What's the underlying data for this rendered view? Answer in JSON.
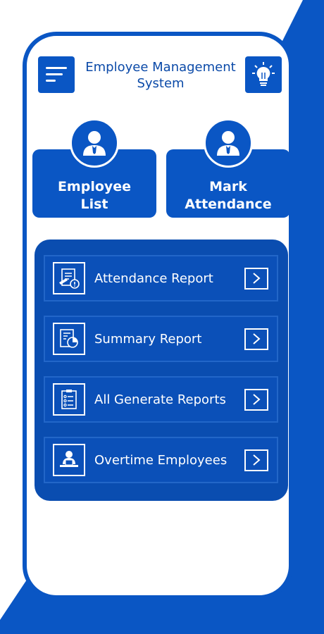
{
  "header": {
    "title_line1": "Employee Management",
    "title_line2": "System",
    "menu_icon": "hamburger-menu-icon",
    "idea_icon": "lightbulb-icon"
  },
  "cards": [
    {
      "line1": "Employee",
      "line2": "List",
      "icon": "employee-avatar-icon"
    },
    {
      "line1": "Mark",
      "line2": "Attendance",
      "icon": "employee-avatar-icon"
    }
  ],
  "reports": [
    {
      "label": "Attendance Report",
      "icon": "attendance-report-icon"
    },
    {
      "label": "Summary Report",
      "icon": "summary-report-icon"
    },
    {
      "label": "All Generate Reports",
      "icon": "checklist-icon"
    },
    {
      "label": "Overtime Employees",
      "icon": "employee-desk-icon"
    }
  ],
  "colors": {
    "primary": "#0a56c4",
    "panel": "#0a4db0",
    "title_text": "#0b4aa8",
    "background": "#ffffff"
  }
}
